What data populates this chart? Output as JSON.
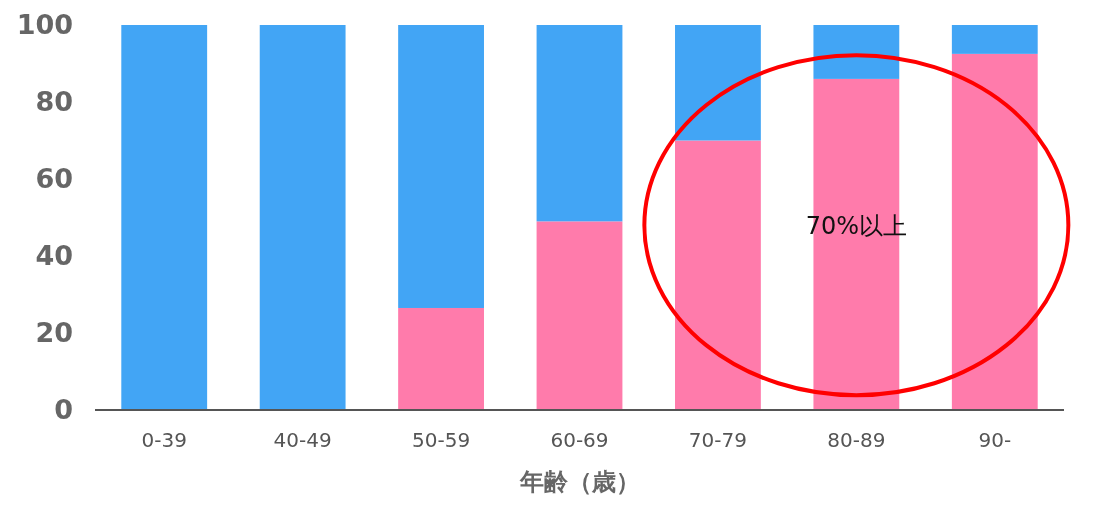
{
  "chart_data": {
    "type": "bar",
    "stacked": true,
    "categories": [
      "0-39",
      "40-49",
      "50-59",
      "60-69",
      "70-79",
      "80-89",
      "90-"
    ],
    "series": [
      {
        "color": "#ff7bab",
        "values": [
          0,
          0,
          26.5,
          49,
          70,
          86,
          92.5
        ]
      },
      {
        "color": "#42a5f5",
        "values": [
          100,
          100,
          73.5,
          51,
          30,
          14,
          7.5
        ]
      }
    ],
    "ylim": [
      0,
      100
    ],
    "yticks": [
      0,
      20,
      40,
      60,
      80,
      100
    ],
    "xlabel": "年齢（歳）",
    "annotations": [
      "70%以上"
    ],
    "grid": false
  }
}
